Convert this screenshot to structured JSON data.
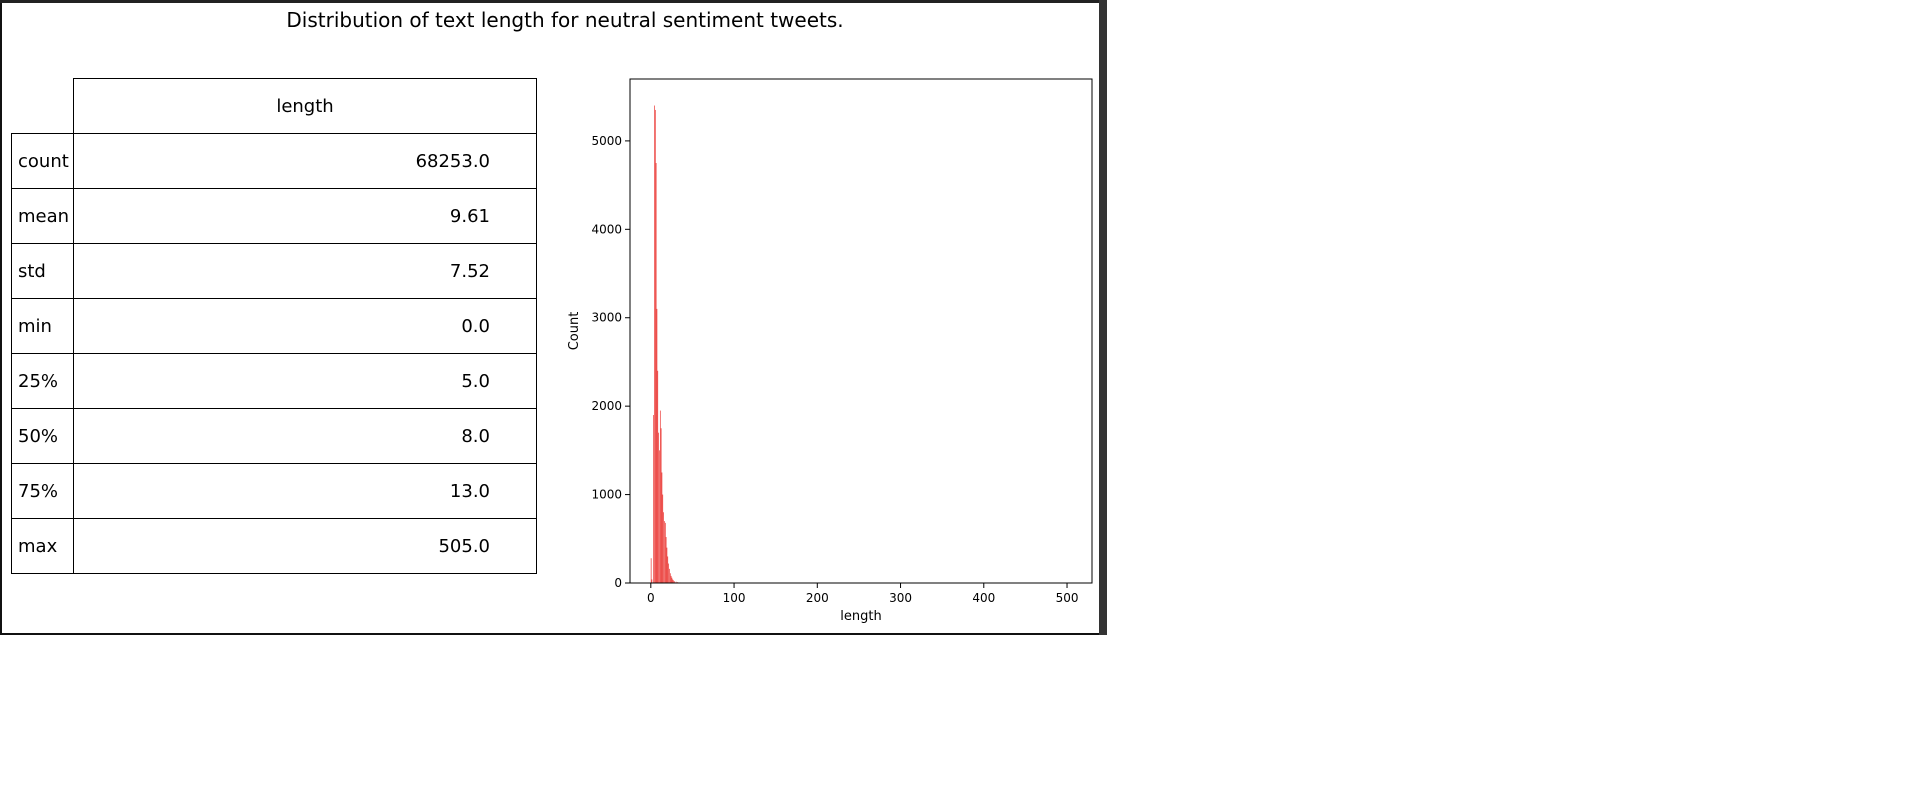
{
  "title": "Distribution of text length for neutral sentiment tweets.",
  "table": {
    "column_header": "length",
    "rows": [
      {
        "label": "count",
        "value": "68253.0"
      },
      {
        "label": "mean",
        "value": "9.61"
      },
      {
        "label": "std",
        "value": "7.52"
      },
      {
        "label": "min",
        "value": "0.0"
      },
      {
        "label": "25%",
        "value": "5.0"
      },
      {
        "label": "50%",
        "value": "8.0"
      },
      {
        "label": "75%",
        "value": "13.0"
      },
      {
        "label": "max",
        "value": "505.0"
      }
    ]
  },
  "chart_data": {
    "type": "bar",
    "xlabel": "length",
    "ylabel": "Count",
    "xlim": [
      -25,
      530
    ],
    "ylim": [
      0,
      5700
    ],
    "xticks": [
      0,
      100,
      200,
      300,
      400,
      500
    ],
    "yticks": [
      0,
      1000,
      2000,
      3000,
      4000,
      5000
    ],
    "bar_color": "#e8221e",
    "bin_width": 1,
    "bins": [
      {
        "x": 0,
        "count": 280
      },
      {
        "x": 1,
        "count": 40
      },
      {
        "x": 3,
        "count": 1900
      },
      {
        "x": 4,
        "count": 5400
      },
      {
        "x": 5,
        "count": 5350
      },
      {
        "x": 6,
        "count": 4750
      },
      {
        "x": 7,
        "count": 3100
      },
      {
        "x": 8,
        "count": 2400
      },
      {
        "x": 9,
        "count": 1700
      },
      {
        "x": 10,
        "count": 1500
      },
      {
        "x": 11,
        "count": 1950
      },
      {
        "x": 12,
        "count": 1750
      },
      {
        "x": 13,
        "count": 1250
      },
      {
        "x": 14,
        "count": 1000
      },
      {
        "x": 15,
        "count": 800
      },
      {
        "x": 16,
        "count": 700
      },
      {
        "x": 17,
        "count": 680
      },
      {
        "x": 18,
        "count": 520
      },
      {
        "x": 19,
        "count": 400
      },
      {
        "x": 20,
        "count": 300
      },
      {
        "x": 21,
        "count": 220
      },
      {
        "x": 22,
        "count": 160
      },
      {
        "x": 23,
        "count": 110
      },
      {
        "x": 24,
        "count": 80
      },
      {
        "x": 25,
        "count": 60
      },
      {
        "x": 26,
        "count": 40
      },
      {
        "x": 27,
        "count": 30
      },
      {
        "x": 28,
        "count": 20
      },
      {
        "x": 30,
        "count": 15
      },
      {
        "x": 32,
        "count": 10
      },
      {
        "x": 35,
        "count": 6
      },
      {
        "x": 40,
        "count": 4
      },
      {
        "x": 45,
        "count": 3
      },
      {
        "x": 50,
        "count": 2
      }
    ]
  }
}
